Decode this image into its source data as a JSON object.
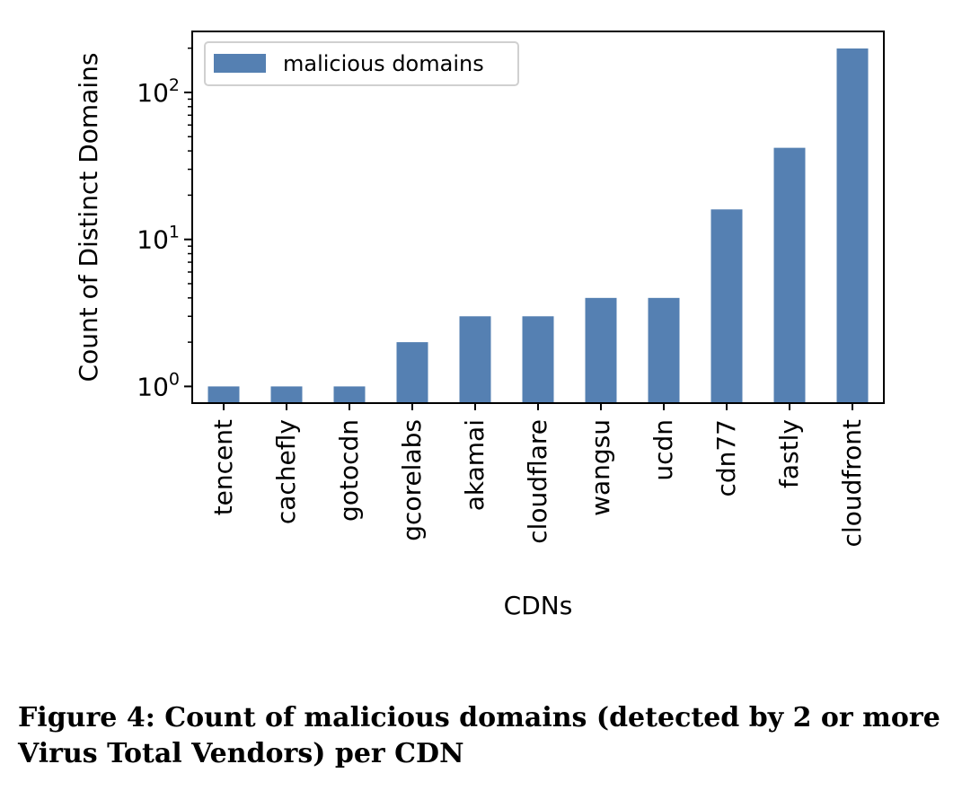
{
  "chart_data": {
    "type": "bar",
    "yscale": "log",
    "xlabel": "CDNs",
    "ylabel": "Count of Distinct Domains",
    "categories": [
      "tencent",
      "cachefly",
      "gotocdn",
      "gcorelabs",
      "akamai",
      "cloudflare",
      "wangsu",
      "ucdn",
      "cdn77",
      "fastly",
      "cloudfront"
    ],
    "series": [
      {
        "name": "malicious domains",
        "values": [
          1,
          1,
          1,
          2,
          3,
          3,
          4,
          4,
          16,
          42,
          199
        ]
      }
    ],
    "ylim": [
      0.77,
      260
    ],
    "yticks": [
      {
        "value": 1,
        "base": "10",
        "exp": "0"
      },
      {
        "value": 10,
        "base": "10",
        "exp": "1"
      },
      {
        "value": 100,
        "base": "10",
        "exp": "2"
      }
    ],
    "minor_yticks": [
      2,
      3,
      4,
      5,
      6,
      7,
      8,
      9,
      20,
      30,
      40,
      50,
      60,
      70,
      80,
      90,
      200
    ],
    "legend_position": "top-left",
    "bar_color": "#5580b2"
  },
  "caption": {
    "line1": "Figure 4: Count of malicious domains (detected by 2 or more",
    "line2": "Virus Total Vendors) per CDN"
  }
}
